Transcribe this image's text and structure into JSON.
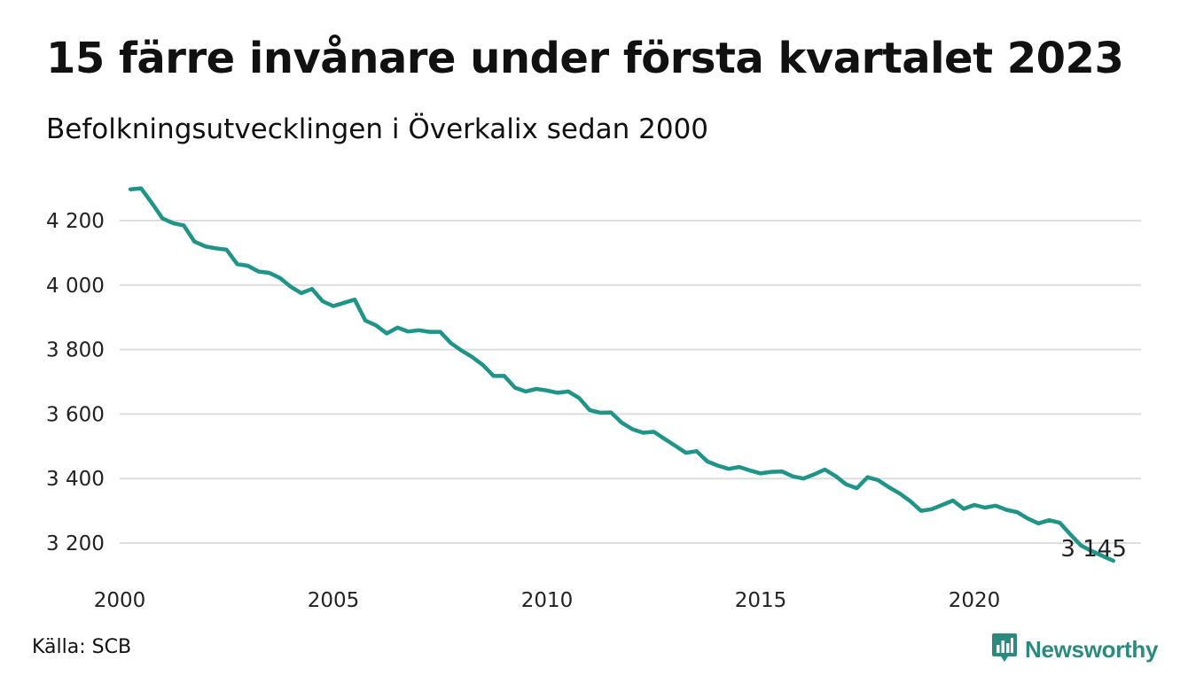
{
  "title": "15 färre invånare under första kvartalet 2023",
  "subtitle": "Befolkningsutvecklingen i Överkalix sedan 2000",
  "source": "Källa: SCB",
  "brand": {
    "name": "Newsworthy",
    "icon": "newsworthy-logo-icon"
  },
  "colors": {
    "line": "#1f9488",
    "grid": "#dddddd",
    "brand": "#2a8a7e"
  },
  "chart_data": {
    "type": "line",
    "title": "15 färre invånare under första kvartalet 2023",
    "subtitle": "Befolkningsutvecklingen i Överkalix sedan 2000",
    "xlabel": "",
    "ylabel": "",
    "xlim": [
      2000.0,
      2023.5
    ],
    "ylim": [
      3110,
      4310
    ],
    "yticks": [
      4200,
      4000,
      3800,
      3600,
      3400,
      3200
    ],
    "ytick_labels": [
      "4 200",
      "4 000",
      "3 800",
      "3 600",
      "3 400",
      "3 200"
    ],
    "xticks": [
      2000,
      2005,
      2010,
      2015,
      2020
    ],
    "xtick_labels": [
      "2000",
      "2005",
      "2010",
      "2015",
      "2020"
    ],
    "grid": true,
    "end_label": "3 145",
    "x": [
      2000.25,
      2000.5,
      2000.75,
      2001.0,
      2001.25,
      2001.5,
      2001.75,
      2002.0,
      2002.25,
      2002.5,
      2002.75,
      2003.0,
      2003.25,
      2003.5,
      2003.75,
      2004.0,
      2004.25,
      2004.5,
      2004.75,
      2005.0,
      2005.25,
      2005.5,
      2005.75,
      2006.0,
      2006.25,
      2006.5,
      2006.75,
      2007.0,
      2007.25,
      2007.5,
      2007.75,
      2008.0,
      2008.25,
      2008.5,
      2008.75,
      2009.0,
      2009.25,
      2009.5,
      2009.75,
      2010.0,
      2010.25,
      2010.5,
      2010.75,
      2011.0,
      2011.25,
      2011.5,
      2011.75,
      2012.0,
      2012.25,
      2012.5,
      2012.75,
      2013.0,
      2013.25,
      2013.5,
      2013.75,
      2014.0,
      2014.25,
      2014.5,
      2014.75,
      2015.0,
      2015.25,
      2015.5,
      2015.75,
      2016.0,
      2016.25,
      2016.5,
      2016.75,
      2017.0,
      2017.25,
      2017.5,
      2017.75,
      2018.0,
      2018.25,
      2018.5,
      2018.75,
      2019.0,
      2019.25,
      2019.5,
      2019.75,
      2020.0,
      2020.25,
      2020.5,
      2020.75,
      2021.0,
      2021.25,
      2021.5,
      2021.75,
      2022.0,
      2022.25,
      2022.5,
      2022.75,
      2023.0,
      2023.25
    ],
    "series": [
      {
        "values": [
          4297,
          4300,
          4255,
          4207,
          4192,
          4185,
          4135,
          4120,
          4114,
          4110,
          4065,
          4060,
          4042,
          4038,
          4022,
          3995,
          3975,
          3988,
          3950,
          3935,
          3945,
          3955,
          3890,
          3875,
          3850,
          3868,
          3856,
          3860,
          3855,
          3855,
          3820,
          3797,
          3777,
          3752,
          3718,
          3718,
          3682,
          3670,
          3678,
          3673,
          3666,
          3670,
          3650,
          3612,
          3604,
          3605,
          3573,
          3553,
          3542,
          3545,
          3523,
          3502,
          3480,
          3485,
          3453,
          3440,
          3430,
          3436,
          3425,
          3416,
          3421,
          3422,
          3407,
          3400,
          3413,
          3428,
          3408,
          3382,
          3370,
          3404,
          3395,
          3373,
          3354,
          3330,
          3300,
          3305,
          3318,
          3332,
          3306,
          3318,
          3310,
          3316,
          3303,
          3296,
          3276,
          3261,
          3271,
          3263,
          3226,
          3192,
          3175,
          3160,
          3145
        ]
      }
    ]
  }
}
